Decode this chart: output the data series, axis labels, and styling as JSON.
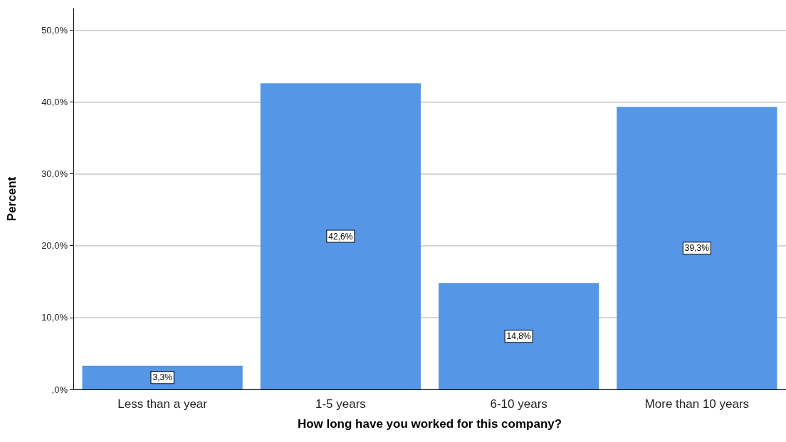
{
  "chart_data": {
    "type": "bar",
    "xlabel": "How long have you worked for this company?",
    "ylabel": "Percent",
    "categories": [
      "Less than a year",
      "1-5 years",
      "6-10 years",
      "More than 10 years"
    ],
    "values": [
      3.3,
      42.6,
      14.8,
      39.3
    ],
    "value_labels": [
      "3,3%",
      "42,6%",
      "14,8%",
      "39,3%"
    ],
    "color": "#5596e6",
    "ylim": [
      0,
      53
    ],
    "yticks": [
      {
        "value": 0,
        "label": ",0%"
      },
      {
        "value": 10,
        "label": "10,0%"
      },
      {
        "value": 20,
        "label": "20,0%"
      },
      {
        "value": 30,
        "label": "30,0%"
      },
      {
        "value": 40,
        "label": "40,0%"
      },
      {
        "value": 50,
        "label": "50,0%"
      }
    ],
    "grid": "y"
  }
}
